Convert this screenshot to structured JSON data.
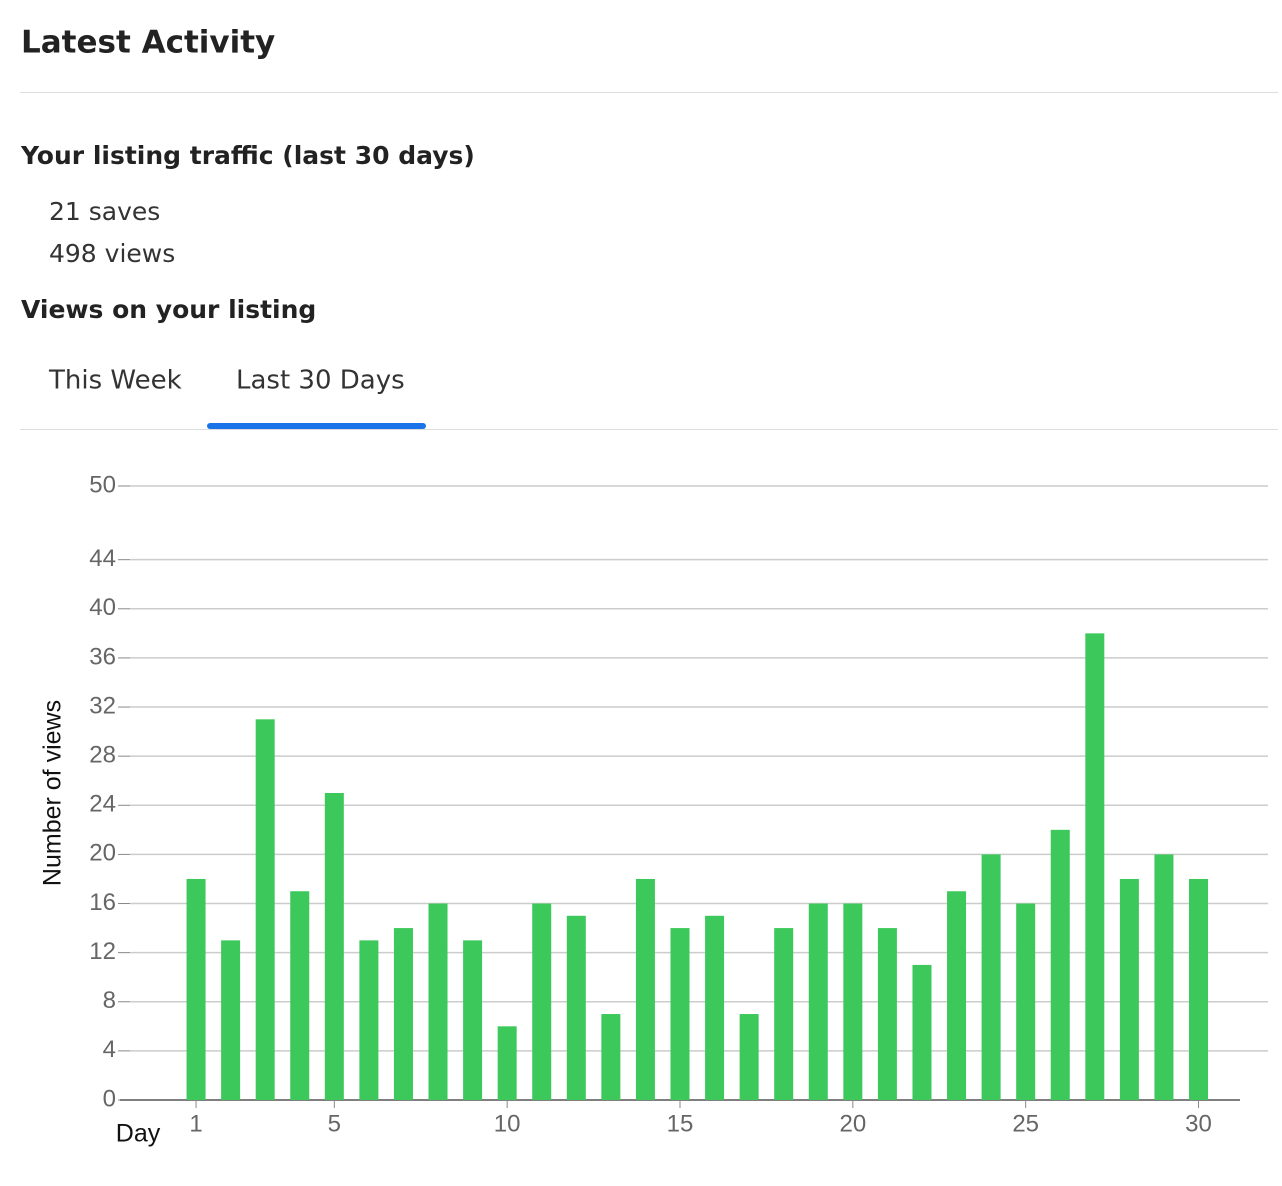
{
  "header": {
    "title": "Latest Activity"
  },
  "traffic": {
    "heading": "Your listing traffic (last 30 days)",
    "stats": [
      "21 saves",
      "498 views"
    ]
  },
  "views": {
    "heading": "Views on your listing",
    "tabs": [
      "This Week",
      "Last 30 Days"
    ]
  },
  "chart_data": {
    "type": "bar",
    "x_label": "Day",
    "y_label": "Number of views",
    "x": [
      1,
      2,
      3,
      4,
      5,
      6,
      7,
      8,
      9,
      10,
      11,
      12,
      13,
      14,
      15,
      16,
      17,
      18,
      19,
      20,
      21,
      22,
      23,
      24,
      25,
      26,
      27,
      28,
      29,
      30
    ],
    "values": [
      18,
      13,
      31,
      17,
      25,
      13,
      14,
      16,
      13,
      6,
      16,
      15,
      7,
      18,
      14,
      15,
      7,
      14,
      16,
      16,
      14,
      11,
      17,
      20,
      16,
      22,
      38,
      18,
      20,
      18
    ],
    "color": "#3cc85a",
    "xlim": [
      -1.2,
      31.2
    ],
    "xticks": [
      1,
      5,
      10,
      15,
      20,
      25,
      30
    ],
    "ylim": [
      0,
      50
    ],
    "yticks": [
      0,
      4,
      8,
      12,
      16,
      20,
      24,
      28,
      32,
      36,
      40,
      44,
      50
    ],
    "grid": true
  }
}
